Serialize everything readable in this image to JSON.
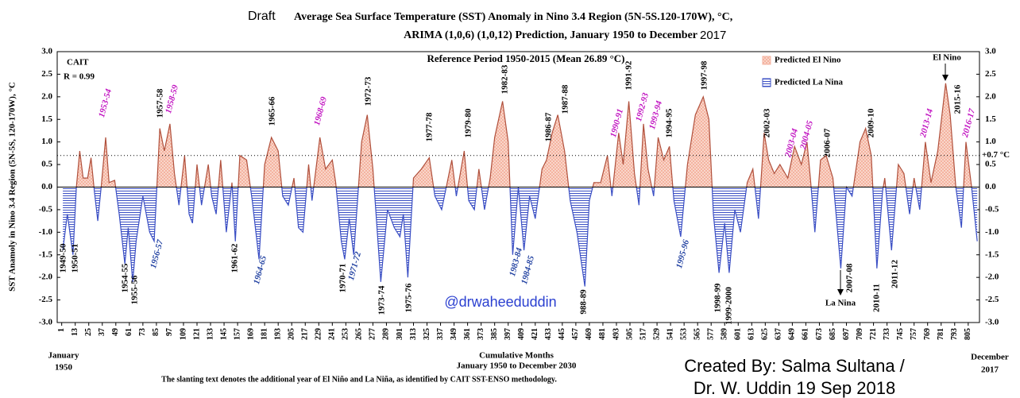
{
  "chart_data": {
    "type": "area",
    "title_prefix": "Draft",
    "title": "Average Sea Surface Temperature (SST) Anomaly  in Nino 3.4 Region (5N-5S.120-170W), °C,",
    "subtitle": "ARIMA (1,0,6) (1,0,12) Prediction, January 1950 to December",
    "subtitle_suffix": "2017",
    "note_left": [
      "CAIT",
      "R = 0.99"
    ],
    "reference": "Reference Period 1950-2015 (Mean 26.89 °C)",
    "legend": [
      {
        "name": "Predicted El Nino",
        "color": "#f4b3a0"
      },
      {
        "name": "Predicted La Nina",
        "color": "#3b4fc4"
      }
    ],
    "ylabel": "SST Anamoly in Nino 3.4 Region (5N-5S, 120-170W), °C",
    "xlabel": [
      "Cumulative Months",
      "January 1950 to December 2030"
    ],
    "x_start_label": [
      "January",
      "1950"
    ],
    "x_end_label": [
      "December",
      "2017"
    ],
    "footnote": "The slanting text denotes the additional year of El Niño and La Niña, as identified by CAIT SST-ENSO methodology.",
    "watermark": "@drwaheeduddin",
    "credit": [
      "Created By: Salma Sultana /",
      "Dr. W. Uddin  19 Sep 2018"
    ],
    "el_nino_label": "El Nino",
    "la_nina_label": "La Nina",
    "threshold": {
      "value": 0.7,
      "label": "+0.7 °C"
    },
    "x": [
      2,
      6,
      11,
      14,
      17,
      20,
      24,
      27,
      30,
      33,
      36,
      40,
      43,
      48,
      52,
      57,
      60,
      64,
      67,
      73,
      79,
      83,
      88,
      92,
      97,
      101,
      105,
      110,
      114,
      117,
      121,
      125,
      131,
      134,
      138,
      142,
      147,
      152,
      155,
      159,
      165,
      170,
      176,
      181,
      187,
      193,
      197,
      202,
      207,
      211,
      215,
      220,
      223,
      230,
      235,
      241,
      244,
      249,
      252,
      256,
      260,
      267,
      272,
      277,
      284,
      290,
      296,
      301,
      304,
      308,
      313,
      320,
      327,
      332,
      338,
      347,
      351,
      358,
      362,
      367,
      371,
      376,
      381,
      385,
      392,
      397,
      401,
      406,
      411,
      416,
      421,
      427,
      431,
      436,
      441,
      447,
      452,
      458,
      465,
      469,
      473,
      479,
      485,
      489,
      495,
      499,
      504,
      509,
      513,
      517,
      521,
      526,
      530,
      535,
      540,
      544,
      550,
      556,
      563,
      570,
      575,
      579,
      584,
      589,
      593,
      598,
      603,
      609,
      614,
      619,
      624,
      628,
      633,
      638,
      645,
      651,
      657,
      662,
      665,
      669,
      674,
      679,
      685,
      692,
      697,
      702,
      709,
      714,
      719,
      724,
      729,
      731,
      737,
      743,
      748,
      753,
      757,
      762,
      767,
      772,
      778,
      785,
      789,
      794,
      799,
      803,
      808,
      813
    ],
    "values": [
      -1.4,
      -0.6,
      -1.5,
      0.0,
      0.8,
      0.2,
      0.2,
      0.65,
      -0.1,
      -0.75,
      0.0,
      1.1,
      0.1,
      0.15,
      -0.6,
      -1.7,
      -0.9,
      -2.1,
      -1.2,
      -0.2,
      -1.0,
      -1.2,
      1.3,
      0.8,
      1.4,
      0.3,
      -0.4,
      0.7,
      -0.6,
      -0.8,
      0.5,
      -0.4,
      0.5,
      -0.2,
      -0.6,
      0.6,
      -1.0,
      0.1,
      -1.2,
      0.7,
      0.6,
      -0.3,
      -1.6,
      0.5,
      1.1,
      0.8,
      -0.2,
      -0.4,
      0.2,
      -0.9,
      -1.0,
      0.5,
      -0.3,
      1.1,
      0.4,
      0.6,
      0.1,
      -1.2,
      -1.6,
      -0.7,
      -1.5,
      1.0,
      1.6,
      0.4,
      -2.1,
      -0.5,
      -0.9,
      -1.1,
      -0.6,
      -2.0,
      0.2,
      0.4,
      0.65,
      -0.2,
      -0.5,
      0.6,
      -0.2,
      0.8,
      -0.3,
      -0.5,
      0.4,
      -0.5,
      0.2,
      1.1,
      1.9,
      1.0,
      -1.5,
      0.0,
      -1.4,
      -0.2,
      -0.7,
      0.4,
      0.6,
      1.2,
      1.6,
      0.8,
      -0.3,
      -1.0,
      -2.2,
      -0.3,
      0.1,
      0.1,
      0.7,
      -0.2,
      1.2,
      0.5,
      1.9,
      0.3,
      -0.4,
      1.4,
      0.4,
      -0.2,
      1.1,
      0.6,
      0.9,
      -0.3,
      -1.1,
      0.5,
      1.6,
      2.0,
      1.5,
      -0.6,
      -1.9,
      -0.8,
      -1.9,
      -0.5,
      -1.0,
      0.1,
      0.4,
      -0.7,
      1.2,
      0.6,
      0.3,
      0.5,
      0.2,
      0.9,
      0.5,
      1.0,
      0.2,
      -1.0,
      0.6,
      0.7,
      0.2,
      -1.8,
      0.0,
      -0.2,
      1.0,
      1.3,
      0.7,
      -1.8,
      -0.1,
      0.2,
      -1.4,
      0.5,
      0.3,
      -0.6,
      0.2,
      -0.5,
      1.0,
      0.1,
      0.8,
      2.3,
      1.6,
      0.0,
      -0.9,
      1.0,
      0.0,
      -1.2
    ],
    "xlim": [
      -3,
      815
    ],
    "xticks": [
      1,
      13,
      25,
      37,
      49,
      61,
      73,
      85,
      97,
      109,
      121,
      133,
      145,
      157,
      169,
      181,
      193,
      205,
      217,
      229,
      241,
      253,
      265,
      277,
      289,
      301,
      313,
      325,
      337,
      349,
      361,
      373,
      385,
      397,
      409,
      421,
      433,
      445,
      457,
      469,
      481,
      493,
      505,
      517,
      529,
      541,
      553,
      565,
      577,
      589,
      601,
      613,
      625,
      637,
      649,
      661,
      673,
      685,
      697,
      709,
      721,
      733,
      745,
      757,
      769,
      781,
      793,
      805
    ],
    "ylim": [
      -3,
      3
    ],
    "yticks": [
      {
        "value": 3,
        "label": "3.0"
      },
      {
        "value": 2.5,
        "label": "2.5"
      },
      {
        "value": 2,
        "label": "2.0"
      },
      {
        "value": 1.5,
        "label": "1.5"
      },
      {
        "value": 1,
        "label": "1.0"
      },
      {
        "value": 0.5,
        "label": "0.5"
      },
      {
        "value": 0,
        "label": "0.0"
      },
      {
        "value": -0.5,
        "label": "-0.5"
      },
      {
        "value": -1,
        "label": "-1.0"
      },
      {
        "value": -1.5,
        "label": "-1.5"
      },
      {
        "value": -2,
        "label": "-2.0"
      },
      {
        "value": -2.5,
        "label": "-2.5"
      },
      {
        "value": -3,
        "label": "-3.0"
      }
    ],
    "annotations": [
      {
        "text": "1949-50",
        "color": "#000000"
      },
      {
        "text": "1950-51",
        "color": "#000000"
      },
      {
        "text": "1953-54",
        "color": "#c010c0"
      },
      {
        "text": "1954-55",
        "color": "#000000"
      },
      {
        "text": "1955-56",
        "color": "#000000"
      },
      {
        "text": "1956-57",
        "color": "#1f3fa0"
      },
      {
        "text": "1957-58",
        "color": "#000000"
      },
      {
        "text": "1958-59",
        "color": "#c010c0"
      },
      {
        "text": "1961-62",
        "color": "#000000"
      },
      {
        "text": "1964-65",
        "color": "#1f3fa0"
      },
      {
        "text": "1965-66",
        "color": "#000000"
      },
      {
        "text": "1968-69",
        "color": "#c010c0"
      },
      {
        "text": "1972-73",
        "color": "#000000"
      },
      {
        "text": "1970-71",
        "color": "#000000"
      },
      {
        "text": "1971-72",
        "color": "#1f3fa0"
      },
      {
        "text": "1973-74",
        "color": "#000000"
      },
      {
        "text": "1975-76",
        "color": "#000000"
      },
      {
        "text": "1977-78",
        "color": "#000000"
      },
      {
        "text": "1979-80",
        "color": "#000000"
      },
      {
        "text": "1982-83",
        "color": "#000000"
      },
      {
        "text": "1983-84",
        "color": "#1f3fa0"
      },
      {
        "text": "1984-85",
        "color": "#1f3fa0"
      },
      {
        "text": "1986-87",
        "color": "#000000"
      },
      {
        "text": "1987-88",
        "color": "#000000"
      },
      {
        "text": "988-89",
        "color": "#000000"
      },
      {
        "text": "1990-91",
        "color": "#c010c0"
      },
      {
        "text": "1991-92",
        "color": "#000000"
      },
      {
        "text": "1992-93",
        "color": "#c010c0"
      },
      {
        "text": "1993-94",
        "color": "#c010c0"
      },
      {
        "text": "1994-95",
        "color": "#000000"
      },
      {
        "text": "1995-96",
        "color": "#1f3fa0"
      },
      {
        "text": "1997-98",
        "color": "#000000"
      },
      {
        "text": "1998-99",
        "color": "#000000"
      },
      {
        "text": "1999-2000",
        "color": "#000000"
      },
      {
        "text": "2002-03",
        "color": "#000000"
      },
      {
        "text": "2003-04",
        "color": "#c010c0"
      },
      {
        "text": "2004-05",
        "color": "#c010c0"
      },
      {
        "text": "2006-07",
        "color": "#000000"
      },
      {
        "text": "2007-08",
        "color": "#000000"
      },
      {
        "text": "2009-10",
        "color": "#000000"
      },
      {
        "text": "2010-11",
        "color": "#000000"
      },
      {
        "text": "2011-12",
        "color": "#000000"
      },
      {
        "text": "2013-14",
        "color": "#c010c0"
      },
      {
        "text": "2015-16",
        "color": "#000000"
      },
      {
        "text": "2016-17",
        "color": "#c010c0"
      }
    ]
  }
}
